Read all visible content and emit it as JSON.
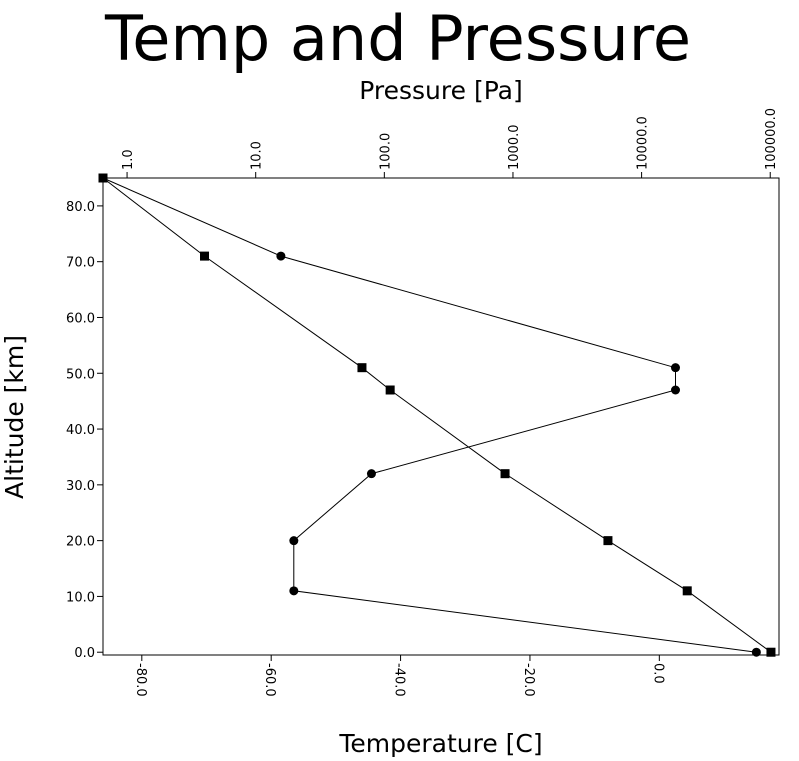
{
  "chart_data": {
    "type": "line",
    "title": "Temp and Pressure",
    "ylabel": "Altitude [km]",
    "xlabel_bottom": "Temperature [C]",
    "xlabel_top": "Pressure [Pa]",
    "y_axis": {
      "range": [
        -0.5,
        85
      ],
      "ticks": [
        0,
        10,
        20,
        30,
        40,
        50,
        60,
        70,
        80
      ],
      "tick_labels": [
        "0.0",
        "10.0",
        "20.0",
        "30.0",
        "40.0",
        "50.0",
        "60.0",
        "70.0",
        "80.0"
      ]
    },
    "x_bottom_axis": {
      "scale": "linear",
      "range": [
        -86,
        18.5
      ],
      "ticks": [
        -80,
        -60,
        -40,
        -20,
        0
      ],
      "tick_labels": [
        "-80.0",
        "-60.0",
        "-40.0",
        "-20.0",
        "0.0"
      ]
    },
    "x_top_axis": {
      "scale": "log",
      "range": [
        0.65,
        117000
      ],
      "ticks": [
        1,
        10,
        100,
        1000,
        10000,
        100000
      ],
      "tick_labels": [
        "1.0",
        "10.0",
        "100.0",
        "1000.0",
        "10000.0",
        "100000.0"
      ]
    },
    "grid": false,
    "series": [
      {
        "marker": "circle",
        "axis": "bottom",
        "x": [
          15,
          -56.5,
          -56.5,
          -44.5,
          2.5,
          2.5,
          -58.5,
          -86
        ],
        "y": [
          0,
          11,
          20,
          32,
          47,
          51,
          71,
          85
        ]
      },
      {
        "marker": "square",
        "axis": "top",
        "x": [
          101325,
          22632,
          5475,
          868,
          111,
          67,
          4,
          0.65
        ],
        "y": [
          0,
          11,
          20,
          32,
          47,
          51,
          71,
          85
        ]
      }
    ]
  }
}
